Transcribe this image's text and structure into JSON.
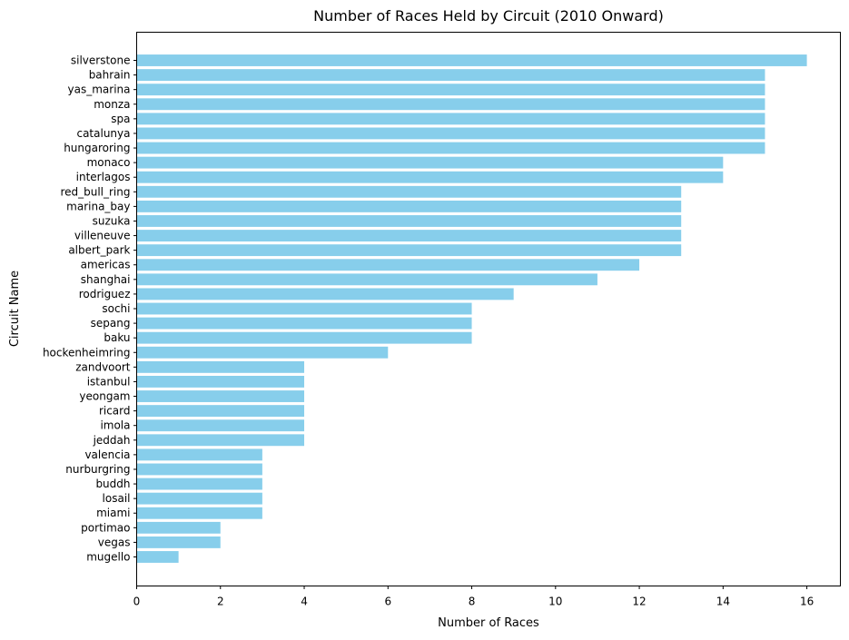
{
  "chart_data": {
    "type": "bar",
    "orientation": "horizontal",
    "title": "Number of Races Held by Circuit (2010 Onward)",
    "xlabel": "Number of Races",
    "ylabel": "Circuit Name",
    "xlim": [
      0,
      16.8
    ],
    "xticks": [
      0,
      2,
      4,
      6,
      8,
      10,
      12,
      14,
      16
    ],
    "grid": false,
    "bar_color": "#87ceeb",
    "categories": [
      "silverstone",
      "bahrain",
      "yas_marina",
      "monza",
      "spa",
      "catalunya",
      "hungaroring",
      "monaco",
      "interlagos",
      "red_bull_ring",
      "marina_bay",
      "suzuka",
      "villeneuve",
      "albert_park",
      "americas",
      "shanghai",
      "rodriguez",
      "sochi",
      "sepang",
      "baku",
      "hockenheimring",
      "zandvoort",
      "istanbul",
      "yeongam",
      "ricard",
      "imola",
      "jeddah",
      "valencia",
      "nurburgring",
      "buddh",
      "losail",
      "miami",
      "portimao",
      "vegas",
      "mugello"
    ],
    "values": [
      16,
      15,
      15,
      15,
      15,
      15,
      15,
      14,
      14,
      13,
      13,
      13,
      13,
      13,
      12,
      11,
      9,
      8,
      8,
      8,
      6,
      4,
      4,
      4,
      4,
      4,
      4,
      3,
      3,
      3,
      3,
      3,
      2,
      2,
      1
    ]
  }
}
